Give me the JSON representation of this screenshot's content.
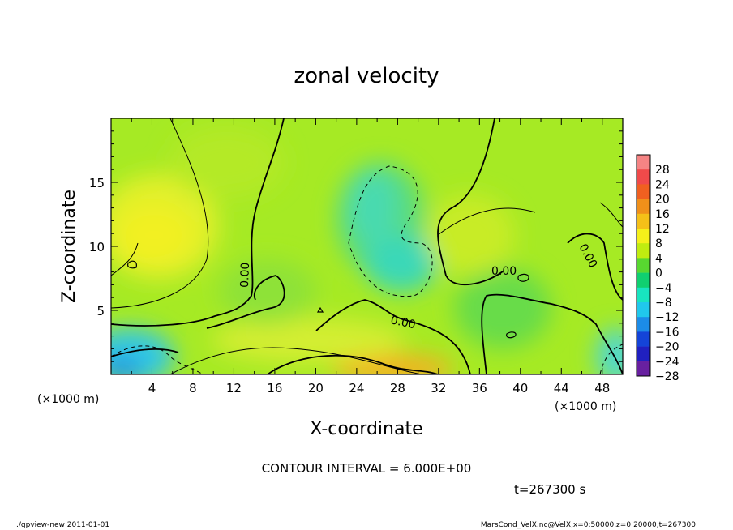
{
  "chart_data": {
    "type": "heatmap",
    "title": "zonal velocity",
    "xlabel": "X-coordinate",
    "ylabel": "Z-coordinate",
    "x_unit_note_left": "(×1000 m)",
    "x_unit_note_right": "(×1000 m)",
    "xlim": [
      0,
      50
    ],
    "ylim": [
      0,
      20
    ],
    "x_ticks": [
      "4",
      "8",
      "12",
      "16",
      "20",
      "24",
      "28",
      "32",
      "36",
      "40",
      "44",
      "48"
    ],
    "y_ticks": [
      "5",
      "10",
      "15"
    ],
    "colorbar": {
      "levels": [
        "28",
        "24",
        "20",
        "16",
        "12",
        "8",
        "4",
        "0",
        "−4",
        "−8",
        "−12",
        "−16",
        "−20",
        "−24",
        "−28"
      ],
      "colors": [
        "#f58484",
        "#f04a4a",
        "#f06020",
        "#f0901a",
        "#f5c018",
        "#f5f01a",
        "#c0ec10",
        "#58d830",
        "#10d070",
        "#18e4c0",
        "#20c8ec",
        "#1c8ce8",
        "#1444d8",
        "#2020c0",
        "#6820a0"
      ]
    },
    "contour_labels": [
      "0.00",
      "0.00",
      "0.00",
      "0.00"
    ],
    "contour_interval_text": "CONTOUR INTERVAL = 6.000E+00",
    "time_text": "t=267300 s",
    "footer_left": "./gpview-new   2011-01-01",
    "footer_right": "MarsCond_VelX.nc@VelX,x=0:50000,z=0:20000,t=267300",
    "field_features": [
      {
        "kind": "max",
        "x": 4,
        "z": 11,
        "value": 9
      },
      {
        "kind": "max",
        "x": 28.5,
        "z": 0.5,
        "value": 14
      },
      {
        "kind": "max",
        "x": 38,
        "z": 11,
        "value": 6
      },
      {
        "kind": "min",
        "x": 1.5,
        "z": 0.5,
        "value": -14
      },
      {
        "kind": "min",
        "x": 28,
        "z": 8,
        "value": -6
      },
      {
        "kind": "min",
        "x": 49.5,
        "z": 1,
        "value": -8
      }
    ]
  }
}
